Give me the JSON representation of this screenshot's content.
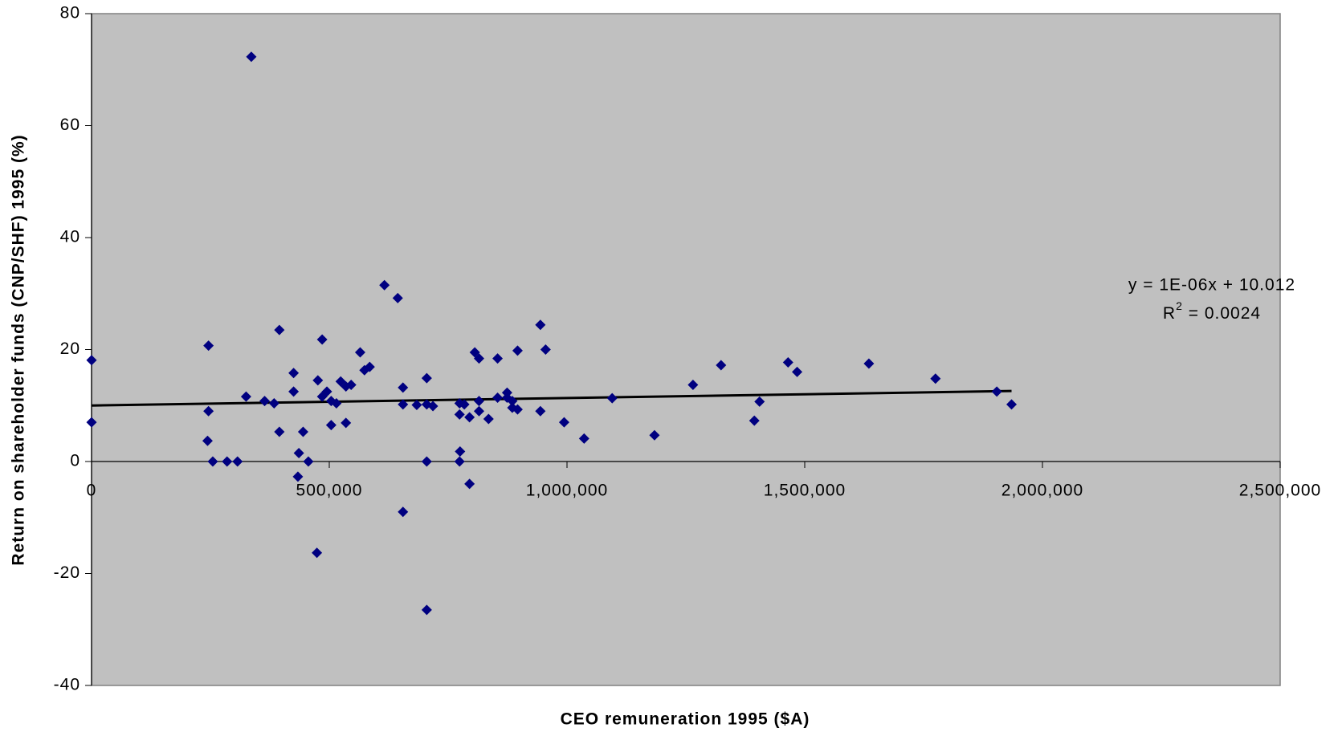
{
  "chart_data": {
    "type": "scatter",
    "x_label": "CEO remuneration 1995 ($A)",
    "y_label": "Return on shareholder funds (CNP/SHF) 1995 (%)",
    "xlim": [
      0,
      2500000
    ],
    "ylim": [
      -40,
      80
    ],
    "xticks": [
      0,
      {
        "value": 500000,
        "label": "500,000"
      },
      {
        "value": 1000000,
        "label": "1,000,000"
      },
      {
        "value": 1500000,
        "label": "1,500,000"
      },
      {
        "value": 2000000,
        "label": "2,000,000"
      },
      {
        "value": 2500000,
        "label": "2,500,000"
      }
    ],
    "yticks": [
      -40,
      -20,
      0,
      20,
      40,
      60,
      80
    ],
    "grid": false,
    "series": [
      {
        "color": "#000080",
        "x": [
          0,
          0,
          246000,
          246000,
          244000,
          255000,
          285000,
          307000,
          336000,
          325000,
          364000,
          384000,
          395000,
          395000,
          425000,
          425000,
          436000,
          434000,
          445000,
          456000,
          474000,
          476000,
          485000,
          485000,
          495000,
          504000,
          504000,
          515000,
          524000,
          535000,
          535000,
          546000,
          565000,
          574000,
          585000,
          616000,
          644000,
          655000,
          655000,
          655000,
          684000,
          705000,
          705000,
          705000,
          705000,
          718000,
          774000,
          774000,
          775000,
          774000,
          784000,
          795000,
          795000,
          806000,
          815000,
          815000,
          815000,
          835000,
          854000,
          854000,
          874000,
          874000,
          885000,
          885000,
          896000,
          896000,
          944000,
          944000,
          955000,
          994000,
          1036000,
          1095000,
          1184000,
          1265000,
          1324000,
          1394000,
          1405000,
          1465000,
          1484000,
          1635000,
          1775000,
          1904000,
          1935000
        ],
        "values": [
          18.1,
          7.0,
          20.7,
          9.0,
          3.7,
          0,
          0,
          0,
          72.3,
          11.6,
          10.8,
          10.4,
          23.5,
          5.3,
          15.8,
          12.5,
          1.5,
          -2.7,
          5.3,
          0,
          -16.3,
          14.5,
          21.8,
          11.6,
          12.5,
          10.8,
          6.5,
          10.4,
          14.3,
          13.4,
          6.9,
          13.7,
          19.5,
          16.3,
          16.9,
          31.5,
          29.2,
          13.2,
          10.2,
          -9.0,
          10.1,
          14.9,
          10.2,
          0,
          -26.5,
          9.9,
          10.4,
          8.4,
          1.8,
          0,
          10.2,
          7.9,
          -4.0,
          19.5,
          18.4,
          10.8,
          9.0,
          7.6,
          18.4,
          11.4,
          12.3,
          11.4,
          9.6,
          10.8,
          19.8,
          9.3,
          24.4,
          9.0,
          20.0,
          7.0,
          4.1,
          11.3,
          4.7,
          13.7,
          17.2,
          7.3,
          10.7,
          17.7,
          16.0,
          17.5,
          14.8,
          12.5,
          10.2
        ]
      }
    ],
    "trendline": {
      "color": "#000000",
      "x": [
        0,
        1935000
      ],
      "values": [
        10.0,
        12.6
      ]
    },
    "equation": "y = 1E-06x + 10.012",
    "r_squared": {
      "prefix": "R",
      "sup": "2",
      "suffix": " = 0.0024"
    }
  }
}
